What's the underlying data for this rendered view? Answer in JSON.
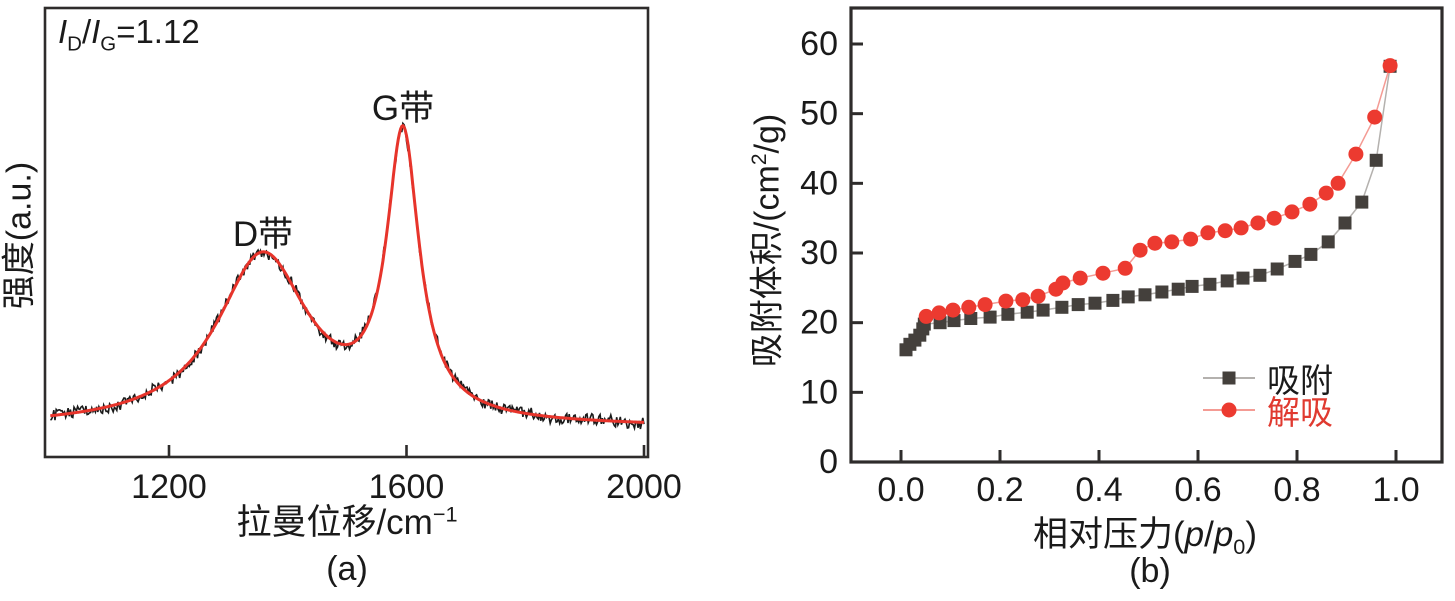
{
  "colors": {
    "frame": "#2e2c2b",
    "text": "#1a1a1a",
    "raman_data": "#1a1a1a",
    "raman_fit": "#e7342b",
    "adsorption_marker": "#44403c",
    "adsorption_line": "#b4b1ae",
    "desorption_marker": "#ec3a30",
    "desorption_line": "#f49b94",
    "desorption_text": "#e03a30"
  },
  "chart_data": [
    {
      "type": "line",
      "panel": "a",
      "caption": "(a)",
      "ylabel": "强度(a.u.)",
      "xlabel_parts": {
        "main": "拉曼位移/cm",
        "sup": "−1"
      },
      "annotation": {
        "i1": "I",
        "sub1": "D",
        "slash": "/",
        "i2": "I",
        "sub2": "G",
        "value": "=1.12"
      },
      "xlim": [
        1000,
        2000
      ],
      "xticks": [
        {
          "value": 1200,
          "label": "1200"
        },
        {
          "value": 1600,
          "label": "1600"
        },
        {
          "value": 2000,
          "label": "2000"
        }
      ],
      "baseline": 0.065,
      "noise_amplitude": 0.013,
      "peaks": [
        {
          "label": "D带",
          "center": 1358,
          "height": 0.38,
          "width": 95
        },
        {
          "label": "G带",
          "center": 1594,
          "height": 0.62,
          "width": 33
        }
      ],
      "series": [
        {
          "name": "raman-experimental",
          "style": "noisy"
        },
        {
          "name": "raman-fit",
          "style": "smooth"
        }
      ]
    },
    {
      "type": "scatter",
      "panel": "b",
      "caption": "(b)",
      "ylabel_parts": {
        "pre": "吸附体积/(cm",
        "sup": "2",
        "post": "/g)"
      },
      "xlabel_parts": {
        "main": "相对压力(",
        "p1": "p",
        "slash": "/",
        "p2": "p",
        "sub": "0",
        "close": ")"
      },
      "xlim": [
        0,
        1.0
      ],
      "ylim": [
        0,
        60
      ],
      "xticks": [
        {
          "value": 0.0,
          "label": "0.0"
        },
        {
          "value": 0.2,
          "label": "0.2"
        },
        {
          "value": 0.4,
          "label": "0.4"
        },
        {
          "value": 0.6,
          "label": "0.6"
        },
        {
          "value": 0.8,
          "label": "0.8"
        },
        {
          "value": 1.0,
          "label": "1.0"
        }
      ],
      "yticks": [
        {
          "value": 0,
          "label": "0"
        },
        {
          "value": 10,
          "label": "10"
        },
        {
          "value": 20,
          "label": "20"
        },
        {
          "value": 30,
          "label": "30"
        },
        {
          "value": 40,
          "label": "40"
        },
        {
          "value": 50,
          "label": "50"
        },
        {
          "value": 60,
          "label": "60"
        }
      ],
      "series": [
        {
          "name": "吸附",
          "marker": "square",
          "points": [
            [
              0.01,
              16.1
            ],
            [
              0.018,
              16.9
            ],
            [
              0.028,
              17.5
            ],
            [
              0.038,
              18.2
            ],
            [
              0.044,
              19.1
            ],
            [
              0.047,
              19.8
            ],
            [
              0.079,
              20.0
            ],
            [
              0.107,
              20.3
            ],
            [
              0.141,
              20.6
            ],
            [
              0.18,
              20.8
            ],
            [
              0.216,
              21.2
            ],
            [
              0.255,
              21.5
            ],
            [
              0.287,
              21.8
            ],
            [
              0.325,
              22.2
            ],
            [
              0.358,
              22.6
            ],
            [
              0.392,
              22.8
            ],
            [
              0.428,
              23.2
            ],
            [
              0.459,
              23.7
            ],
            [
              0.493,
              24.0
            ],
            [
              0.527,
              24.4
            ],
            [
              0.56,
              24.8
            ],
            [
              0.588,
              25.2
            ],
            [
              0.624,
              25.5
            ],
            [
              0.659,
              26.0
            ],
            [
              0.691,
              26.4
            ],
            [
              0.725,
              26.8
            ],
            [
              0.76,
              27.7
            ],
            [
              0.796,
              28.8
            ],
            [
              0.828,
              29.8
            ],
            [
              0.863,
              31.6
            ],
            [
              0.897,
              34.3
            ],
            [
              0.931,
              37.3
            ],
            [
              0.96,
              43.3
            ],
            [
              0.988,
              56.8
            ]
          ]
        },
        {
          "name": "解吸",
          "marker": "circle",
          "points": [
            [
              0.051,
              20.9
            ],
            [
              0.077,
              21.4
            ],
            [
              0.105,
              21.8
            ],
            [
              0.137,
              22.2
            ],
            [
              0.17,
              22.6
            ],
            [
              0.212,
              23.1
            ],
            [
              0.246,
              23.3
            ],
            [
              0.277,
              23.8
            ],
            [
              0.313,
              24.8
            ],
            [
              0.327,
              25.7
            ],
            [
              0.362,
              26.4
            ],
            [
              0.408,
              27.1
            ],
            [
              0.453,
              27.8
            ],
            [
              0.483,
              30.4
            ],
            [
              0.513,
              31.4
            ],
            [
              0.547,
              31.6
            ],
            [
              0.585,
              32.0
            ],
            [
              0.62,
              32.9
            ],
            [
              0.655,
              33.2
            ],
            [
              0.687,
              33.6
            ],
            [
              0.721,
              34.3
            ],
            [
              0.754,
              35.0
            ],
            [
              0.79,
              35.9
            ],
            [
              0.826,
              37.0
            ],
            [
              0.859,
              38.6
            ],
            [
              0.883,
              40.0
            ],
            [
              0.919,
              44.2
            ],
            [
              0.957,
              49.5
            ],
            [
              0.988,
              56.9
            ]
          ]
        }
      ],
      "legend": {
        "items": [
          {
            "label": "吸附",
            "marker": "square"
          },
          {
            "label": "解吸",
            "marker": "circle"
          }
        ]
      }
    }
  ]
}
